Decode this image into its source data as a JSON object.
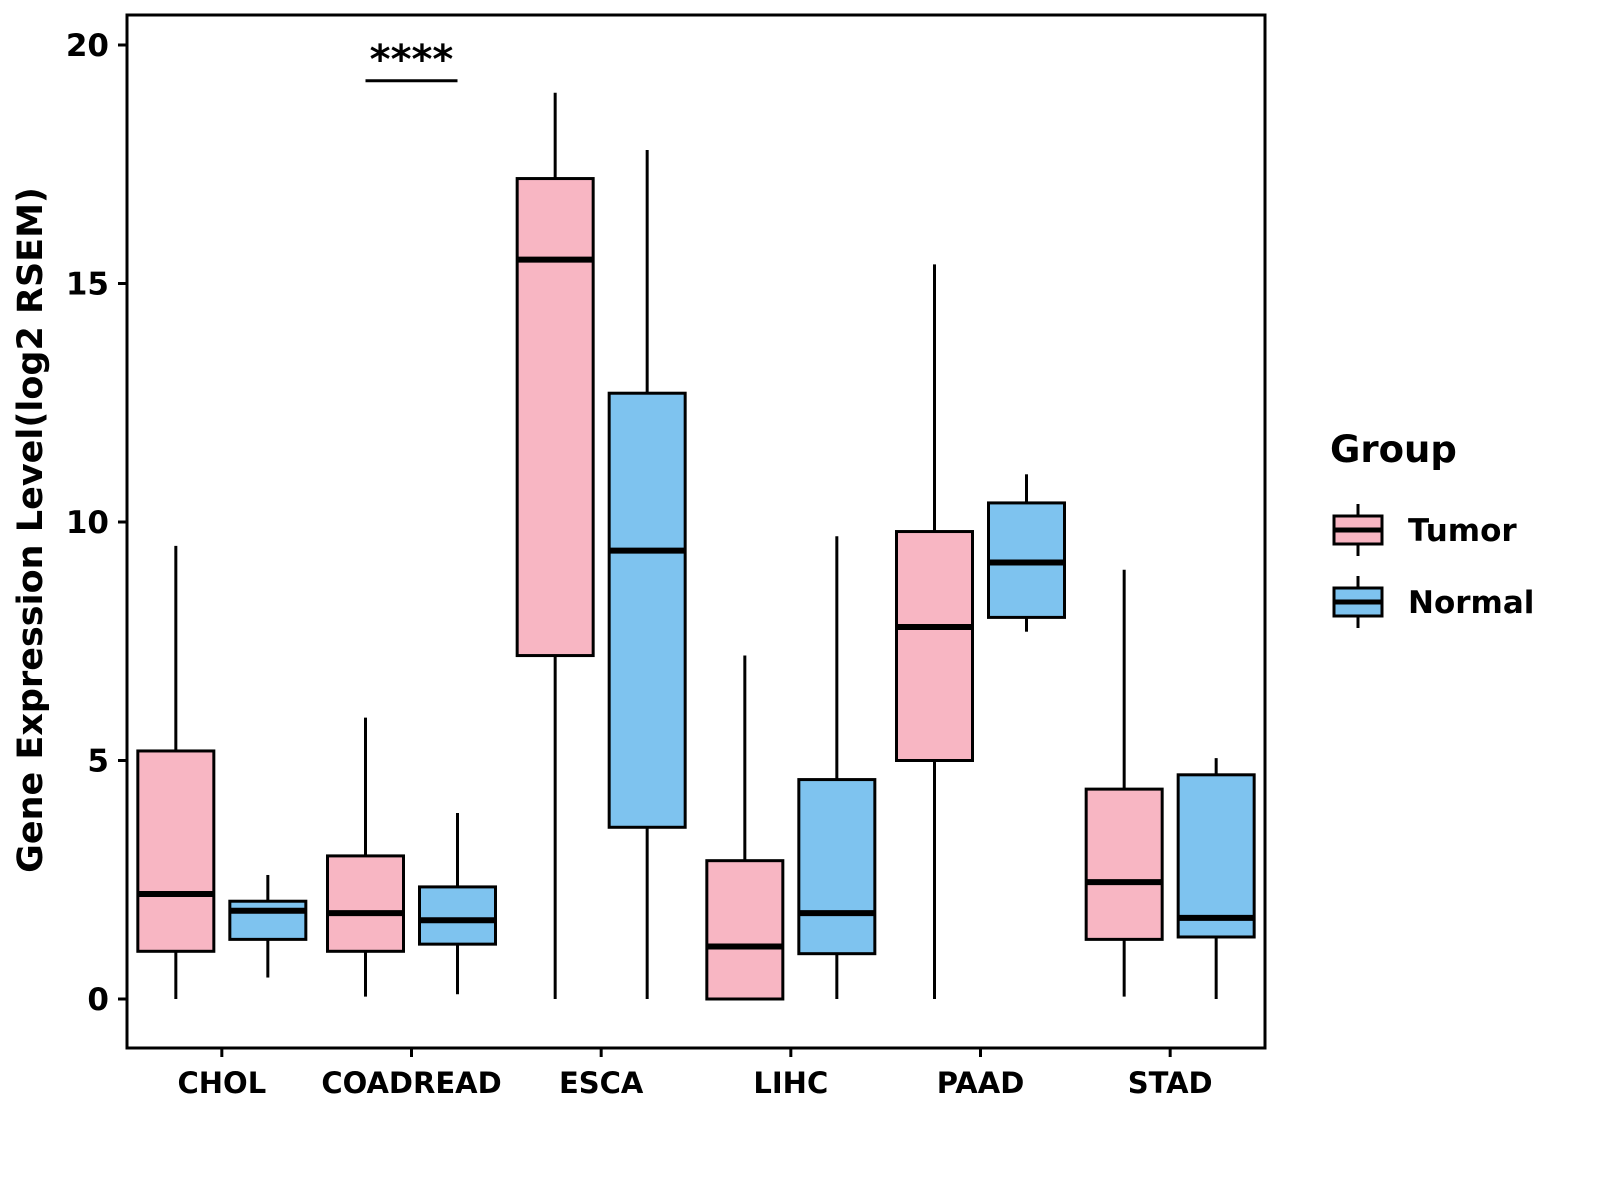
{
  "chart_data": {
    "type": "boxplot",
    "title": "",
    "xlabel": "",
    "ylabel": "Gene Expression Level(log2 RSEM)",
    "ylim": [
      0,
      20
    ],
    "yticks": [
      0,
      5,
      10,
      15,
      20
    ],
    "grid": false,
    "categories": [
      "CHOL",
      "COADREAD",
      "ESCA",
      "LIHC",
      "PAAD",
      "STAD"
    ],
    "legend": {
      "title": "Group",
      "position": "right",
      "entries": [
        {
          "label": "Tumor",
          "color": "#F8B6C3"
        },
        {
          "label": "Normal",
          "color": "#7EC3EF"
        }
      ]
    },
    "colors": {
      "tumor": "#F8B6C3",
      "normal": "#7EC3EF",
      "stroke": "#000000"
    },
    "series": [
      {
        "name": "Tumor",
        "color": "#F8B6C3",
        "boxes": [
          {
            "category": "CHOL",
            "whisker_low": 0.0,
            "q1": 1.0,
            "median": 2.2,
            "q3": 5.2,
            "whisker_high": 9.5
          },
          {
            "category": "COADREAD",
            "whisker_low": 0.05,
            "q1": 1.0,
            "median": 1.8,
            "q3": 3.0,
            "whisker_high": 5.9
          },
          {
            "category": "ESCA",
            "whisker_low": 0.0,
            "q1": 7.2,
            "median": 15.5,
            "q3": 17.2,
            "whisker_high": 19.0
          },
          {
            "category": "LIHC",
            "whisker_low": 0.0,
            "q1": 0.0,
            "median": 1.1,
            "q3": 2.9,
            "whisker_high": 7.2
          },
          {
            "category": "PAAD",
            "whisker_low": 0.0,
            "q1": 5.0,
            "median": 7.8,
            "q3": 9.8,
            "whisker_high": 15.4
          },
          {
            "category": "STAD",
            "whisker_low": 0.05,
            "q1": 1.25,
            "median": 2.45,
            "q3": 4.4,
            "whisker_high": 9.0
          }
        ]
      },
      {
        "name": "Normal",
        "color": "#7EC3EF",
        "boxes": [
          {
            "category": "CHOL",
            "whisker_low": 0.45,
            "q1": 1.25,
            "median": 1.85,
            "q3": 2.05,
            "whisker_high": 2.6
          },
          {
            "category": "COADREAD",
            "whisker_low": 0.1,
            "q1": 1.15,
            "median": 1.65,
            "q3": 2.35,
            "whisker_high": 3.9
          },
          {
            "category": "ESCA",
            "whisker_low": 0.0,
            "q1": 3.6,
            "median": 9.4,
            "q3": 12.7,
            "whisker_high": 17.8
          },
          {
            "category": "LIHC",
            "whisker_low": 0.0,
            "q1": 0.95,
            "median": 1.8,
            "q3": 4.6,
            "whisker_high": 9.7
          },
          {
            "category": "PAAD",
            "whisker_low": 7.7,
            "q1": 8.0,
            "median": 9.15,
            "q3": 10.4,
            "whisker_high": 11.0
          },
          {
            "category": "STAD",
            "whisker_low": 0.0,
            "q1": 1.3,
            "median": 1.7,
            "q3": 4.7,
            "whisker_high": 5.05
          }
        ]
      }
    ],
    "annotations": [
      {
        "category": "COADREAD",
        "label": "****",
        "y": 19.25,
        "type": "significance-bar"
      }
    ]
  }
}
